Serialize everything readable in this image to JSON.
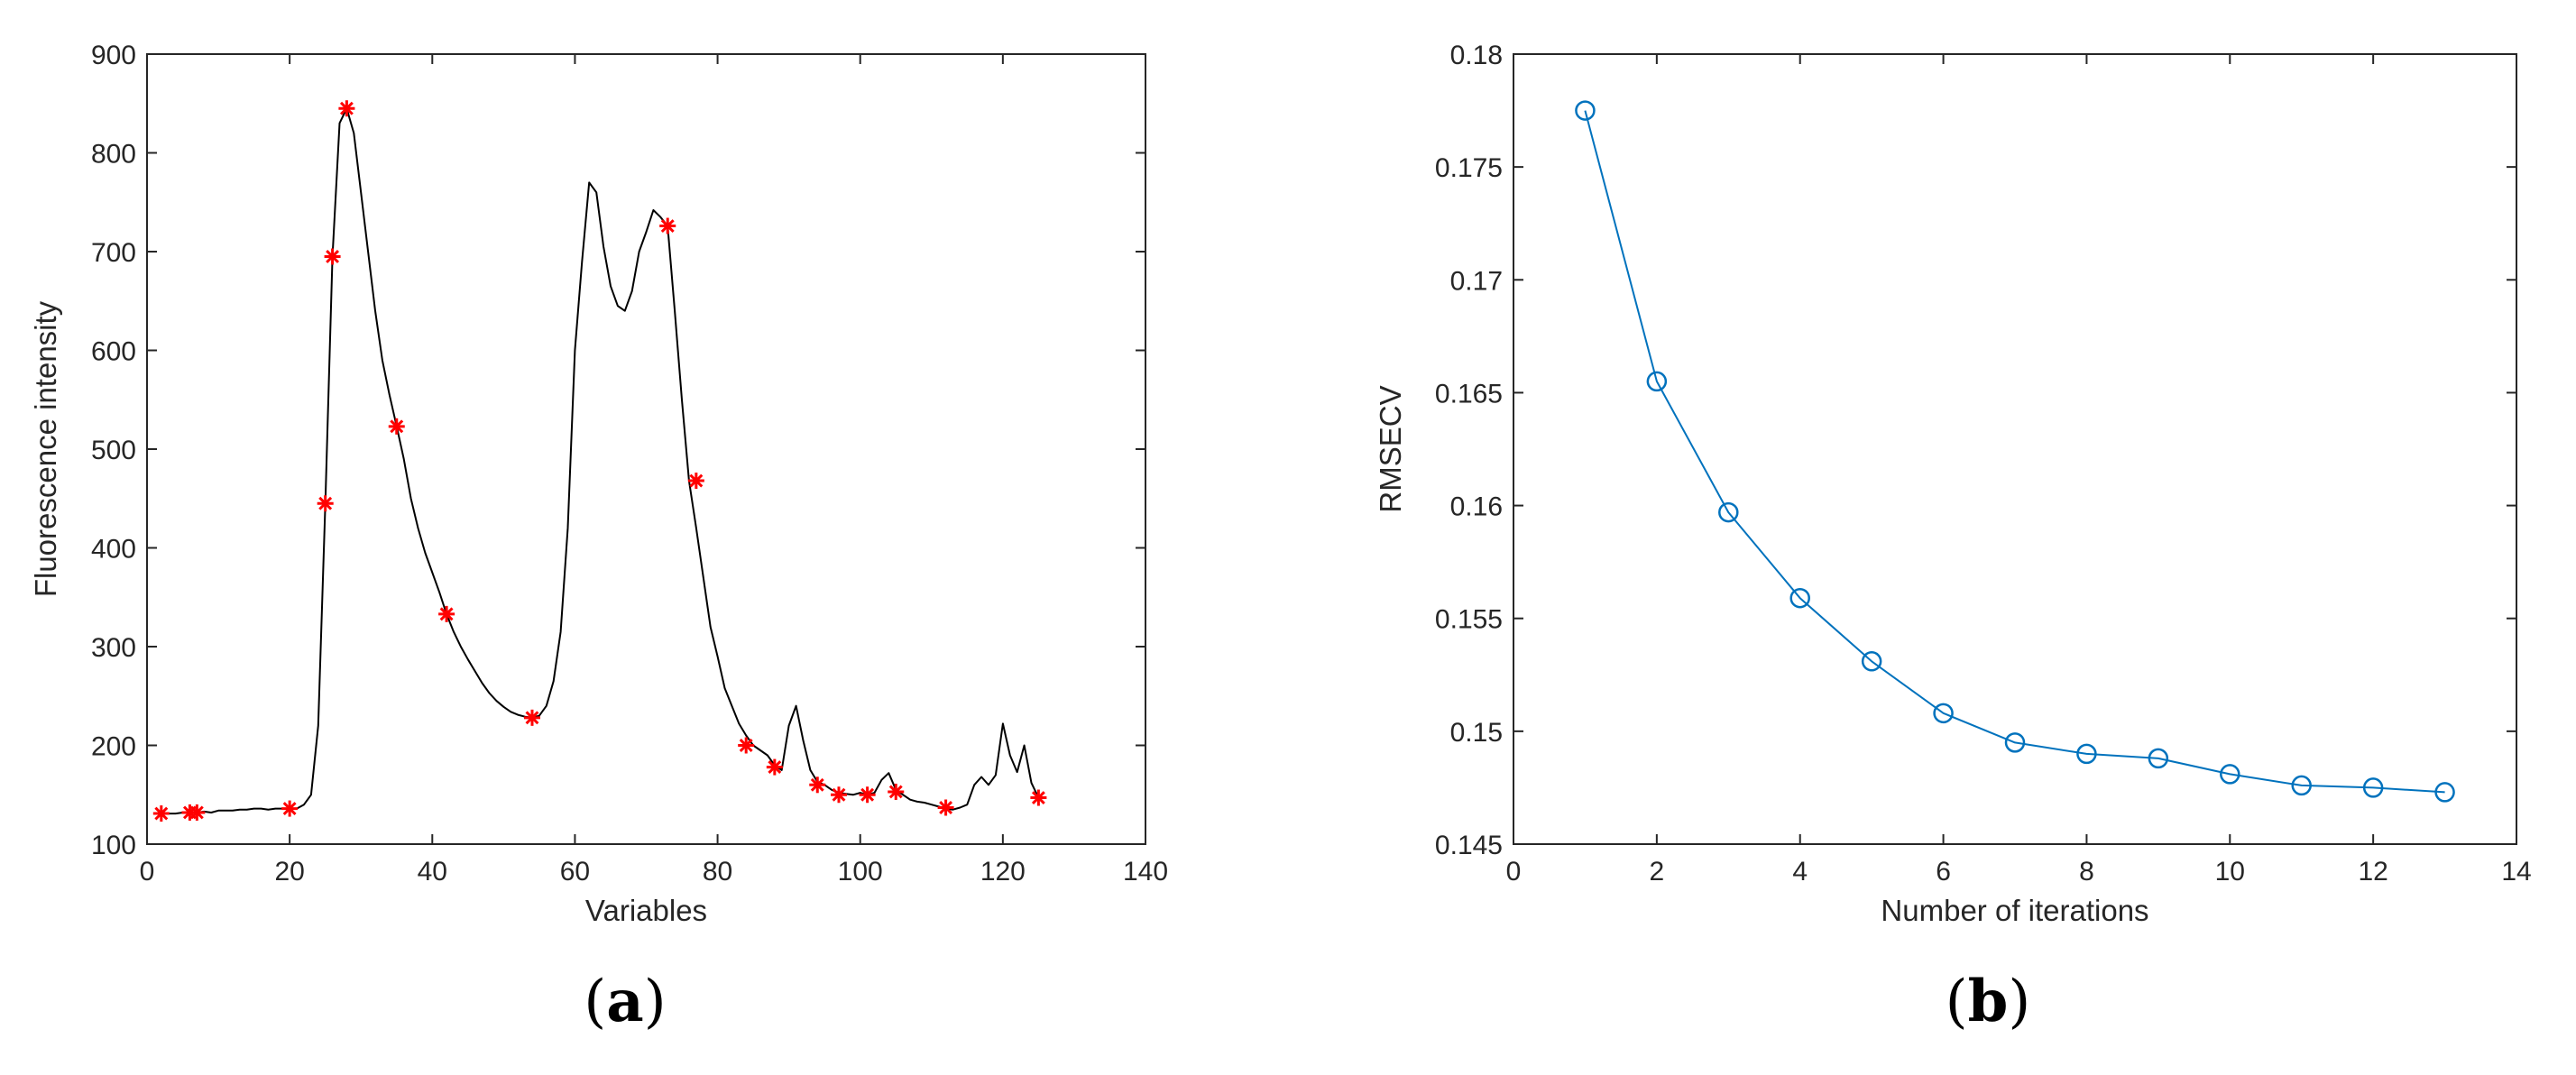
{
  "colors": {
    "spectrum_line": "#000000",
    "selected_marker": "#ff0000",
    "rmsecv_series": "#0072bd",
    "axes": "#262626"
  },
  "panels": [
    {
      "paren_open": "(",
      "letter": "a",
      "paren_close": ")"
    },
    {
      "paren_open": "(",
      "letter": "b",
      "paren_close": ")"
    }
  ],
  "chart_data": [
    {
      "type": "line",
      "xlabel": "Variables",
      "ylabel": "Fluorescence intensity",
      "xlim": [
        0,
        140
      ],
      "ylim": [
        100,
        900
      ],
      "xticks": [
        0,
        20,
        40,
        60,
        80,
        100,
        120,
        140
      ],
      "yticks": [
        100,
        200,
        300,
        400,
        500,
        600,
        700,
        800,
        900
      ],
      "box": true,
      "grid": false,
      "series": [
        {
          "style": "line",
          "color": "#000000",
          "x": [
            1,
            2,
            3,
            4,
            5,
            6,
            7,
            8,
            9,
            10,
            11,
            12,
            13,
            14,
            15,
            16,
            17,
            18,
            19,
            20,
            21,
            22,
            23,
            24,
            25,
            26,
            27,
            28,
            29,
            30,
            31,
            32,
            33,
            34,
            35,
            36,
            37,
            38,
            39,
            40,
            41,
            42,
            43,
            44,
            45,
            46,
            47,
            48,
            49,
            50,
            51,
            52,
            53,
            54,
            55,
            56,
            57,
            58,
            59,
            60,
            61,
            62,
            63,
            64,
            65,
            66,
            67,
            68,
            69,
            70,
            71,
            72,
            73,
            74,
            75,
            76,
            77,
            78,
            79,
            80,
            81,
            82,
            83,
            84,
            85,
            86,
            87,
            88,
            89,
            90,
            91,
            92,
            93,
            94,
            95,
            96,
            97,
            98,
            99,
            100,
            101,
            102,
            103,
            104,
            105,
            106,
            107,
            108,
            109,
            110,
            111,
            112,
            113,
            114,
            115,
            116,
            117,
            118,
            119,
            120,
            121,
            122,
            123,
            124,
            125
          ],
          "y": [
            131,
            131,
            131,
            131,
            132,
            132,
            132,
            133,
            132,
            134,
            134,
            134,
            135,
            135,
            136,
            136,
            135,
            136,
            136,
            136,
            136,
            140,
            150,
            220,
            445,
            695,
            830,
            845,
            820,
            760,
            700,
            640,
            590,
            555,
            523,
            490,
            450,
            420,
            395,
            375,
            355,
            333,
            315,
            300,
            287,
            275,
            263,
            253,
            245,
            239,
            234,
            231,
            229,
            228,
            230,
            240,
            265,
            315,
            420,
            600,
            690,
            770,
            760,
            705,
            665,
            645,
            640,
            660,
            700,
            720,
            742,
            735,
            726,
            640,
            550,
            468,
            420,
            370,
            320,
            290,
            258,
            240,
            222,
            210,
            200,
            195,
            190,
            180,
            175,
            220,
            240,
            205,
            175,
            163,
            160,
            155,
            152,
            151,
            150,
            152,
            150,
            152,
            165,
            172,
            155,
            150,
            145,
            143,
            142,
            140,
            138,
            136,
            135,
            137,
            140,
            160,
            168,
            160,
            170,
            222,
            190,
            173,
            200,
            162,
            147
          ]
        },
        {
          "style": "scatter",
          "marker": "*",
          "color": "#ff0000",
          "x": [
            2,
            6,
            7,
            20,
            25,
            26,
            28,
            35,
            42,
            54,
            73,
            77,
            84,
            88,
            94,
            97,
            101,
            105,
            112,
            125
          ],
          "y": [
            131,
            132,
            132,
            136,
            445,
            695,
            845,
            523,
            333,
            228,
            726,
            468,
            200,
            178,
            160,
            150,
            150,
            153,
            137,
            147
          ]
        }
      ]
    },
    {
      "type": "line",
      "xlabel": "Number of iterations",
      "ylabel": "RMSECV",
      "xlim": [
        0,
        14
      ],
      "ylim": [
        0.145,
        0.18
      ],
      "xticks": [
        0,
        2,
        4,
        6,
        8,
        10,
        12,
        14
      ],
      "yticks": [
        0.145,
        0.15,
        0.155,
        0.16,
        0.165,
        0.17,
        0.175,
        0.18
      ],
      "box": true,
      "grid": false,
      "series": [
        {
          "style": "line+marker",
          "marker": "o",
          "color": "#0072bd",
          "x": [
            1,
            2,
            3,
            4,
            5,
            6,
            7,
            8,
            9,
            10,
            11,
            12,
            13
          ],
          "y": [
            0.1775,
            0.1655,
            0.1597,
            0.1559,
            0.1531,
            0.1508,
            0.1495,
            0.149,
            0.1488,
            0.1481,
            0.1476,
            0.1475,
            0.1473
          ]
        }
      ]
    }
  ]
}
